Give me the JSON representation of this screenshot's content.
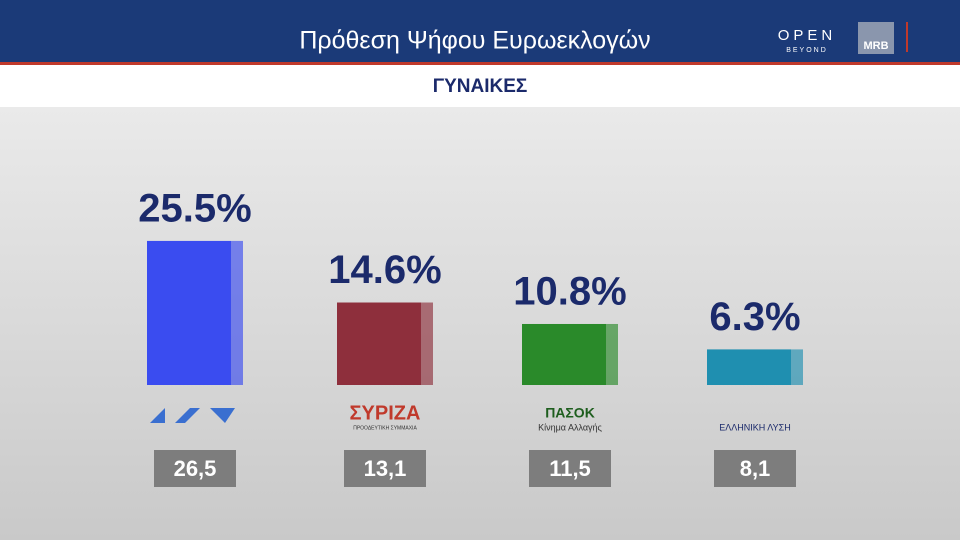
{
  "chart_data": {
    "type": "bar",
    "title": "Πρόθεση Ψήφου Ευρωεκλογών",
    "subtitle": "ΓΥΝΑΙΚΕΣ",
    "channel_logo": "OPEN",
    "channel_tagline": "BEYOND",
    "pollster": "MRB",
    "categories": [
      null,
      "ΣΥΡΙΖΑ",
      "ΠΑΣΟΚ",
      "ΕΛΛΗΝΙΚΗ ΛΥΣΗ"
    ],
    "category_notes": [
      null,
      "ΠΡΟΟΔΕΥΤΙΚΗ ΣΥΜΜΑΧΙΑ",
      "Κίνημα Αλλαγής",
      null
    ],
    "values": [
      25.5,
      14.6,
      10.8,
      6.3
    ],
    "value_labels": [
      "25.5%",
      "14.6%",
      "10.8%",
      "6.3%"
    ],
    "colors": [
      "#3a4cf0",
      "#8e2f3c",
      "#2a8a2a",
      "#1f8fb0"
    ],
    "previous_values": [
      26.5,
      13.1,
      11.5,
      8.1
    ],
    "previous_value_labels": [
      "26,5",
      "13,1",
      "11,5",
      "8,1"
    ]
  }
}
